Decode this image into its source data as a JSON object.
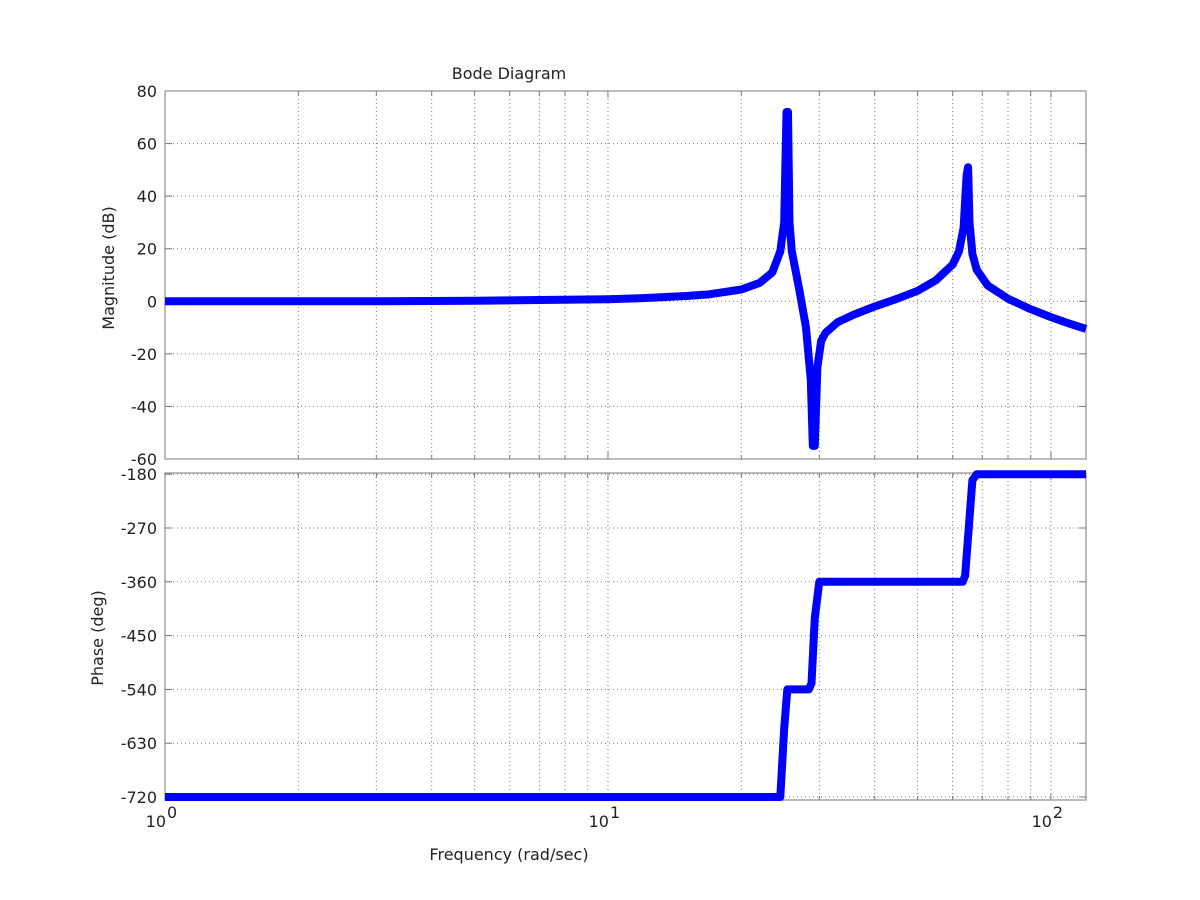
{
  "chart_data": [
    {
      "type": "line",
      "title": "Bode Diagram",
      "xlabel": "",
      "ylabel": "Magnitude (dB)",
      "xscale": "log",
      "xlim": [
        1,
        120
      ],
      "ylim": [
        -60,
        80
      ],
      "yticks": [
        -60,
        -40,
        -20,
        0,
        20,
        40,
        60,
        80
      ],
      "grid": true,
      "series": [
        {
          "color": "#0000ff",
          "x": [
            1,
            2,
            3,
            5,
            7,
            10,
            12,
            15,
            17,
            20,
            22,
            23.5,
            24.5,
            25,
            25.3,
            25.5,
            25.7,
            26,
            27,
            28,
            28.7,
            29,
            29.3,
            29.7,
            30.3,
            31,
            33,
            36,
            40,
            45,
            50,
            55,
            60,
            62,
            63.5,
            64.5,
            65,
            65.5,
            66.5,
            68,
            72,
            80,
            90,
            100,
            110,
            120
          ],
          "y": [
            0,
            0,
            0,
            0.2,
            0.5,
            0.8,
            1.2,
            2,
            2.7,
            4.5,
            7,
            11,
            19,
            30,
            72,
            72,
            30,
            19,
            5,
            -10,
            -30,
            -55,
            -55,
            -25,
            -15,
            -12,
            -8,
            -5,
            -2,
            1,
            4,
            8,
            14,
            19,
            28,
            48,
            51,
            30,
            18,
            12,
            6,
            1,
            -3,
            -6,
            -8.5,
            -10.5
          ]
        }
      ]
    },
    {
      "type": "line",
      "title": "",
      "xlabel": "Frequency (rad/sec)",
      "ylabel": "Phase (deg)",
      "xscale": "log",
      "xlim": [
        1,
        120
      ],
      "ylim": [
        -725,
        -178
      ],
      "yticks": [
        -720,
        -630,
        -540,
        -450,
        -360,
        -270,
        -180
      ],
      "xticks": [
        1,
        10,
        100
      ],
      "xtick_bases": [
        "10",
        "10",
        "10"
      ],
      "xtick_exponents": [
        "0",
        "1",
        "2"
      ],
      "grid": true,
      "series": [
        {
          "color": "#0000ff",
          "x": [
            1,
            24.5,
            25.0,
            25.4,
            27.0,
            28.4,
            28.8,
            29.3,
            30.0,
            40,
            60,
            63.2,
            64,
            66.5,
            68,
            120
          ],
          "y": [
            -720,
            -720,
            -605,
            -540,
            -540,
            -540,
            -530,
            -420,
            -360,
            -360,
            -360,
            -360,
            -350,
            -190,
            -180,
            -180
          ]
        }
      ]
    }
  ]
}
